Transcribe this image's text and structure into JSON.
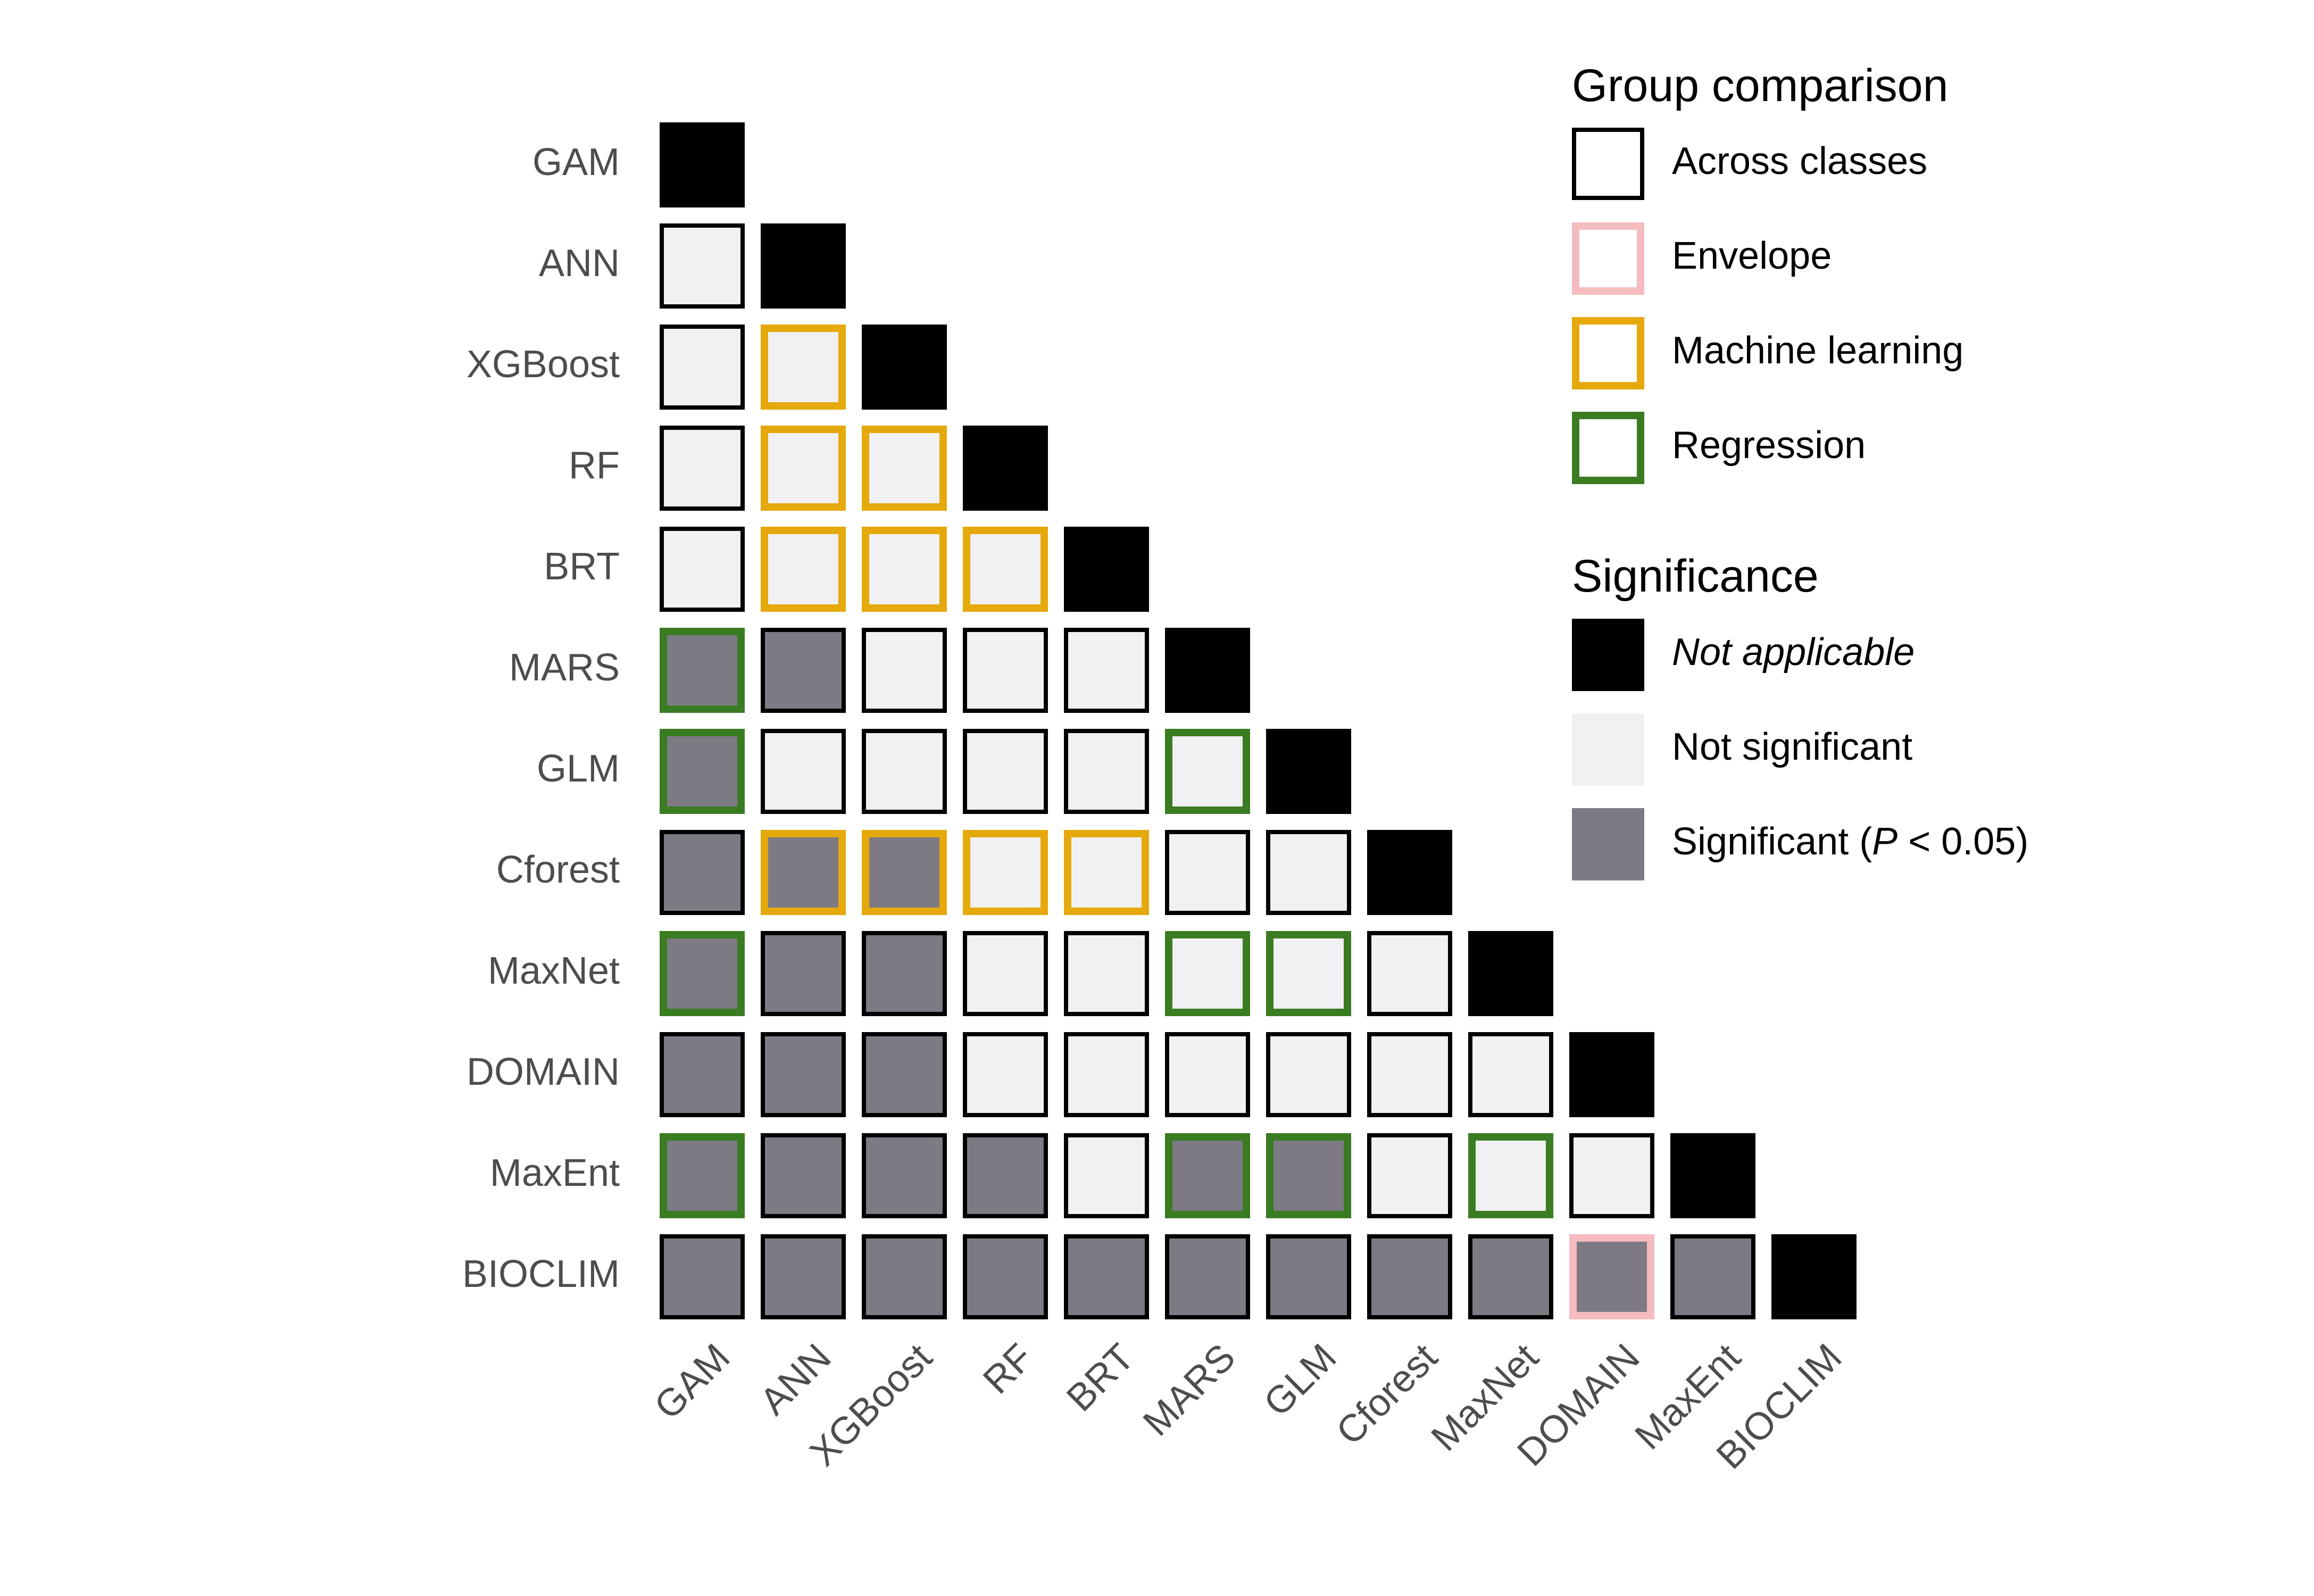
{
  "chart_data": {
    "type": "heatmap",
    "title": "",
    "xlabel": "",
    "ylabel": "",
    "categories": [
      "GAM",
      "ANN",
      "XGBoost",
      "RF",
      "BRT",
      "MARS",
      "GLM",
      "Cforest",
      "MaxNet",
      "DOMAIN",
      "MaxEnt",
      "BIOCLIM"
    ],
    "rows": [
      {
        "name": "GAM",
        "cells": [
          {
            "sig": "na",
            "group": "across"
          }
        ]
      },
      {
        "name": "ANN",
        "cells": [
          {
            "sig": "ns",
            "group": "across"
          },
          {
            "sig": "na",
            "group": "across"
          }
        ]
      },
      {
        "name": "XGBoost",
        "cells": [
          {
            "sig": "ns",
            "group": "across"
          },
          {
            "sig": "ns",
            "group": "ml"
          },
          {
            "sig": "na",
            "group": "across"
          }
        ]
      },
      {
        "name": "RF",
        "cells": [
          {
            "sig": "ns",
            "group": "across"
          },
          {
            "sig": "ns",
            "group": "ml"
          },
          {
            "sig": "ns",
            "group": "ml"
          },
          {
            "sig": "na",
            "group": "across"
          }
        ]
      },
      {
        "name": "BRT",
        "cells": [
          {
            "sig": "ns",
            "group": "across"
          },
          {
            "sig": "ns",
            "group": "ml"
          },
          {
            "sig": "ns",
            "group": "ml"
          },
          {
            "sig": "ns",
            "group": "ml"
          },
          {
            "sig": "na",
            "group": "across"
          }
        ]
      },
      {
        "name": "MARS",
        "cells": [
          {
            "sig": "sig",
            "group": "reg"
          },
          {
            "sig": "sig",
            "group": "across"
          },
          {
            "sig": "ns",
            "group": "across"
          },
          {
            "sig": "ns",
            "group": "across"
          },
          {
            "sig": "ns",
            "group": "across"
          },
          {
            "sig": "na",
            "group": "across"
          }
        ]
      },
      {
        "name": "GLM",
        "cells": [
          {
            "sig": "sig",
            "group": "reg"
          },
          {
            "sig": "ns",
            "group": "across"
          },
          {
            "sig": "ns",
            "group": "across"
          },
          {
            "sig": "ns",
            "group": "across"
          },
          {
            "sig": "ns",
            "group": "across"
          },
          {
            "sig": "ns",
            "group": "reg"
          },
          {
            "sig": "na",
            "group": "across"
          }
        ]
      },
      {
        "name": "Cforest",
        "cells": [
          {
            "sig": "sig",
            "group": "across"
          },
          {
            "sig": "sig",
            "group": "ml"
          },
          {
            "sig": "sig",
            "group": "ml"
          },
          {
            "sig": "ns",
            "group": "ml"
          },
          {
            "sig": "ns",
            "group": "ml"
          },
          {
            "sig": "ns",
            "group": "across"
          },
          {
            "sig": "ns",
            "group": "across"
          },
          {
            "sig": "na",
            "group": "across"
          }
        ]
      },
      {
        "name": "MaxNet",
        "cells": [
          {
            "sig": "sig",
            "group": "reg"
          },
          {
            "sig": "sig",
            "group": "across"
          },
          {
            "sig": "sig",
            "group": "across"
          },
          {
            "sig": "ns",
            "group": "across"
          },
          {
            "sig": "ns",
            "group": "across"
          },
          {
            "sig": "ns",
            "group": "reg"
          },
          {
            "sig": "ns",
            "group": "reg"
          },
          {
            "sig": "ns",
            "group": "across"
          },
          {
            "sig": "na",
            "group": "across"
          }
        ]
      },
      {
        "name": "DOMAIN",
        "cells": [
          {
            "sig": "sig",
            "group": "across"
          },
          {
            "sig": "sig",
            "group": "across"
          },
          {
            "sig": "sig",
            "group": "across"
          },
          {
            "sig": "ns",
            "group": "across"
          },
          {
            "sig": "ns",
            "group": "across"
          },
          {
            "sig": "ns",
            "group": "across"
          },
          {
            "sig": "ns",
            "group": "across"
          },
          {
            "sig": "ns",
            "group": "across"
          },
          {
            "sig": "ns",
            "group": "across"
          },
          {
            "sig": "na",
            "group": "across"
          }
        ]
      },
      {
        "name": "MaxEnt",
        "cells": [
          {
            "sig": "sig",
            "group": "reg"
          },
          {
            "sig": "sig",
            "group": "across"
          },
          {
            "sig": "sig",
            "group": "across"
          },
          {
            "sig": "sig",
            "group": "across"
          },
          {
            "sig": "ns",
            "group": "across"
          },
          {
            "sig": "sig",
            "group": "reg"
          },
          {
            "sig": "sig",
            "group": "reg"
          },
          {
            "sig": "ns",
            "group": "across"
          },
          {
            "sig": "ns",
            "group": "reg"
          },
          {
            "sig": "ns",
            "group": "across"
          },
          {
            "sig": "na",
            "group": "across"
          }
        ]
      },
      {
        "name": "BIOCLIM",
        "cells": [
          {
            "sig": "sig",
            "group": "across"
          },
          {
            "sig": "sig",
            "group": "across"
          },
          {
            "sig": "sig",
            "group": "across"
          },
          {
            "sig": "sig",
            "group": "across"
          },
          {
            "sig": "sig",
            "group": "across"
          },
          {
            "sig": "sig",
            "group": "across"
          },
          {
            "sig": "sig",
            "group": "across"
          },
          {
            "sig": "sig",
            "group": "across"
          },
          {
            "sig": "sig",
            "group": "across"
          },
          {
            "sig": "sig",
            "group": "env"
          },
          {
            "sig": "sig",
            "group": "across"
          },
          {
            "sig": "na",
            "group": "across"
          }
        ]
      }
    ],
    "legend_group": {
      "title": "Group comparison",
      "items": [
        {
          "key": "across",
          "label": "Across classes",
          "color": "#000000"
        },
        {
          "key": "env",
          "label": "Envelope",
          "color": "#F4BCBF"
        },
        {
          "key": "ml",
          "label": "Machine learning",
          "color": "#E5A90C"
        },
        {
          "key": "reg",
          "label": "Regression",
          "color": "#3A7C21"
        }
      ]
    },
    "legend_significance": {
      "title": "Significance",
      "items": [
        {
          "key": "na",
          "label": "Not applicable",
          "color": "#000000",
          "italic": true
        },
        {
          "key": "ns",
          "label": "Not significant",
          "color": "#F1F1F3"
        },
        {
          "key": "sig",
          "label_prefix": "Significant (",
          "label_italic": "P",
          "label_suffix": " < 0.05)",
          "color": "#7D7A84"
        }
      ]
    },
    "legend_placement": "right",
    "grid": false,
    "axis_text_color": "#4D4D4D"
  }
}
